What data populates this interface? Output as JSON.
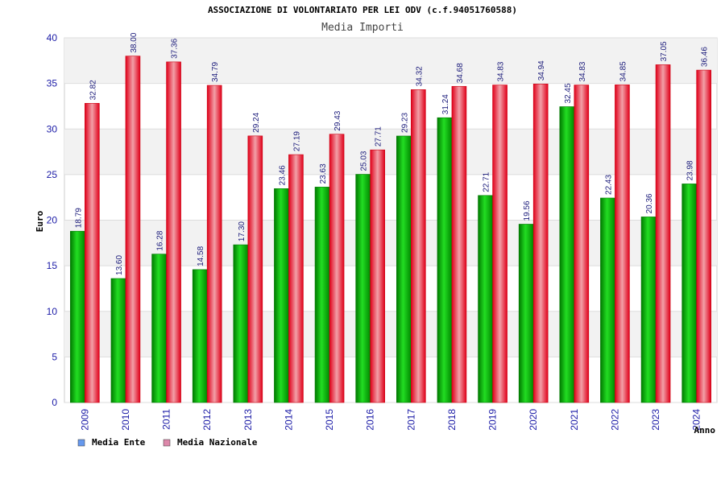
{
  "chart_data": {
    "type": "bar",
    "title": "ASSOCIAZIONE DI VOLONTARIATO PER LEI ODV (c.f.94051760588)",
    "subtitle": "Media Importi",
    "xlabel": "Anno",
    "ylabel": "Euro",
    "ylim": [
      0,
      40
    ],
    "yticks": [
      0,
      5,
      10,
      15,
      20,
      25,
      30,
      35,
      40
    ],
    "grid": true,
    "legend_position": "bottom-left",
    "categories": [
      "2009",
      "2010",
      "2011",
      "2012",
      "2013",
      "2014",
      "2015",
      "2016",
      "2017",
      "2018",
      "2019",
      "2020",
      "2021",
      "2022",
      "2023",
      "2024"
    ],
    "series": [
      {
        "name": "Media Ente",
        "color": "#00b000",
        "legend_color": "#6699ee",
        "values": [
          18.79,
          13.6,
          16.28,
          14.58,
          17.3,
          23.46,
          23.63,
          25.03,
          29.23,
          31.24,
          22.71,
          19.56,
          32.45,
          22.43,
          20.36,
          23.98
        ],
        "labels": [
          "18.79",
          "13.60",
          "16.28",
          "14.58",
          "17.30",
          "23.46",
          "23.63",
          "25.03",
          "29.23",
          "31.24",
          "22.71",
          "19.56",
          "32.45",
          "22.43",
          "20.36",
          "23.98"
        ]
      },
      {
        "name": "Media Nazionale",
        "color": "#ee1122",
        "legend_color": "#dd88aa",
        "values": [
          32.82,
          38.0,
          37.36,
          34.79,
          29.24,
          27.19,
          29.43,
          27.71,
          34.32,
          34.68,
          34.83,
          34.94,
          34.83,
          34.85,
          37.05,
          36.46
        ],
        "labels": [
          "32.82",
          "38.00",
          "37.36",
          "34.79",
          "29.24",
          "27.19",
          "29.43",
          "27.71",
          "34.32",
          "34.68",
          "34.83",
          "34.94",
          "34.83",
          "34.85",
          "37.05",
          "36.46"
        ]
      }
    ]
  }
}
